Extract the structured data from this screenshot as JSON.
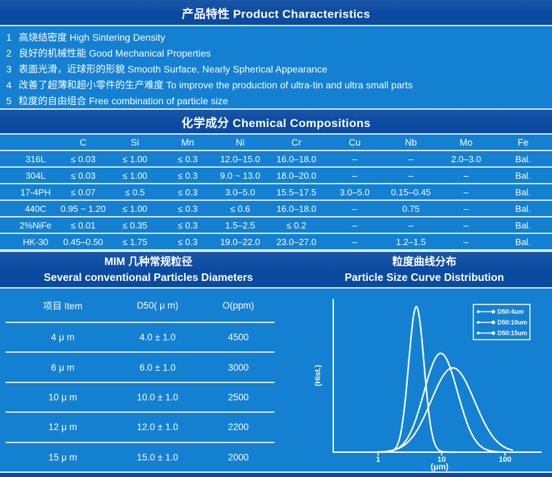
{
  "colors": {
    "header_bar_bg": "#0A4AA1",
    "body_bg": "#1480D2",
    "text": "#FFFFFF",
    "separator_line": "#DFEBF8",
    "curve": "#FFFFFF"
  },
  "product_characteristics": {
    "title": "产品特性 Product Characteristics",
    "items": [
      {
        "num": "1",
        "zh": "高烧结密度",
        "en": "High Sintering Density"
      },
      {
        "num": "2",
        "zh": "良好的机械性能",
        "en": "Good Mechanical Properties"
      },
      {
        "num": "3",
        "zh": "表面光滑，近球形的形貌",
        "en": "Smooth Surface, Nearly Spherical Appearance"
      },
      {
        "num": "4",
        "zh": "改善了超薄和超小零件的生产难度",
        "en": "To improve the production of ultra-tin and ultra small parts"
      },
      {
        "num": "5",
        "zh": "粒度的自由组合",
        "en": "Free combination of particle size"
      }
    ]
  },
  "chemical_compositions": {
    "title": "化学成分 Chemical Compositions",
    "columns": [
      "",
      "C",
      "Si",
      "Mn",
      "Ni",
      "Cr",
      "Cu",
      "Nb",
      "Mo",
      "Fe"
    ],
    "rows": [
      [
        "316L",
        "≤ 0.03",
        "≤ 1.00",
        "≤ 0.3",
        "12.0–15.0",
        "16.0–18.0",
        "–",
        "–",
        "2.0–3.0",
        "Bal."
      ],
      [
        "304L",
        "≤ 0.03",
        "≤ 1.00",
        "≤ 0.3",
        "9.0 ~ 13.0",
        "18.0–20.0",
        "–",
        "–",
        "–",
        "Bal."
      ],
      [
        "17-4PH",
        "≤ 0.07",
        "≤ 0.5",
        "≤ 0.3",
        "3.0–5.0",
        "15.5–17.5",
        "3.0–5.0",
        "0.15–0.45",
        "–",
        "Bal."
      ],
      [
        "440C",
        "0.95 ~ 1.20",
        "≤ 1.00",
        "≤ 0.3",
        "≤ 0.6",
        "16.0–18.0",
        "–",
        "0.75",
        "–",
        "Bal."
      ],
      [
        "2%NiFe",
        "≤ 0.01",
        "≤ 0.35",
        "≤ 0.3",
        "1.5–2.5",
        "≤ 0.2",
        "–",
        "–",
        "–",
        "Bal."
      ],
      [
        "HK-30",
        "0.45–0.50",
        "≤ 1.75",
        "≤ 0.3",
        "19.0–22.0",
        "23.0–27.0",
        "–",
        "1.2–1.5",
        "–",
        "Bal."
      ]
    ]
  },
  "particle_diameters": {
    "title_zh": "MIM 几种常规粒径",
    "title_en": "Several conventional Particles Diameters",
    "columns": [
      "项目 Item",
      "D50( μ m)",
      "O(ppm)"
    ],
    "rows": [
      [
        "4 μ m",
        "4.0 ± 1.0",
        "4500"
      ],
      [
        "6 μ m",
        "6.0 ± 1.0",
        "3000"
      ],
      [
        "10 μ m",
        "10.0 ± 1.0",
        "2500"
      ],
      [
        "12 μ m",
        "12.0 ± 1.0",
        "2200"
      ],
      [
        "15 μ m",
        "15.0 ± 1.0",
        "2000"
      ]
    ]
  },
  "chart_data": {
    "type": "line",
    "title_zh": "粒度曲线分布",
    "title_en": "Particle Size Curve Distribution",
    "xlabel": "(μm)",
    "ylabel": "(Hist.)",
    "x_scale": "log",
    "x_ticks": [
      "1",
      "10",
      "100"
    ],
    "x_range_um": [
      0.2,
      380
    ],
    "grid": false,
    "legend_position": "top-right",
    "curve_model": "lognormal",
    "series": [
      {
        "name": "D50:4um",
        "d50_um": 4.0,
        "log_sigma": 0.28,
        "peak_rel_height": 0.95,
        "draw_range_um": [
          1.0,
          18
        ]
      },
      {
        "name": "D50:10um",
        "d50_um": 9.7,
        "log_sigma": 0.61,
        "peak_rel_height": 0.645,
        "draw_range_um": [
          0.95,
          95
        ]
      },
      {
        "name": "D50:15um",
        "d50_um": 15.0,
        "log_sigma": 0.79,
        "peak_rel_height": 0.55,
        "draw_range_um": [
          1.05,
          130
        ]
      }
    ]
  }
}
